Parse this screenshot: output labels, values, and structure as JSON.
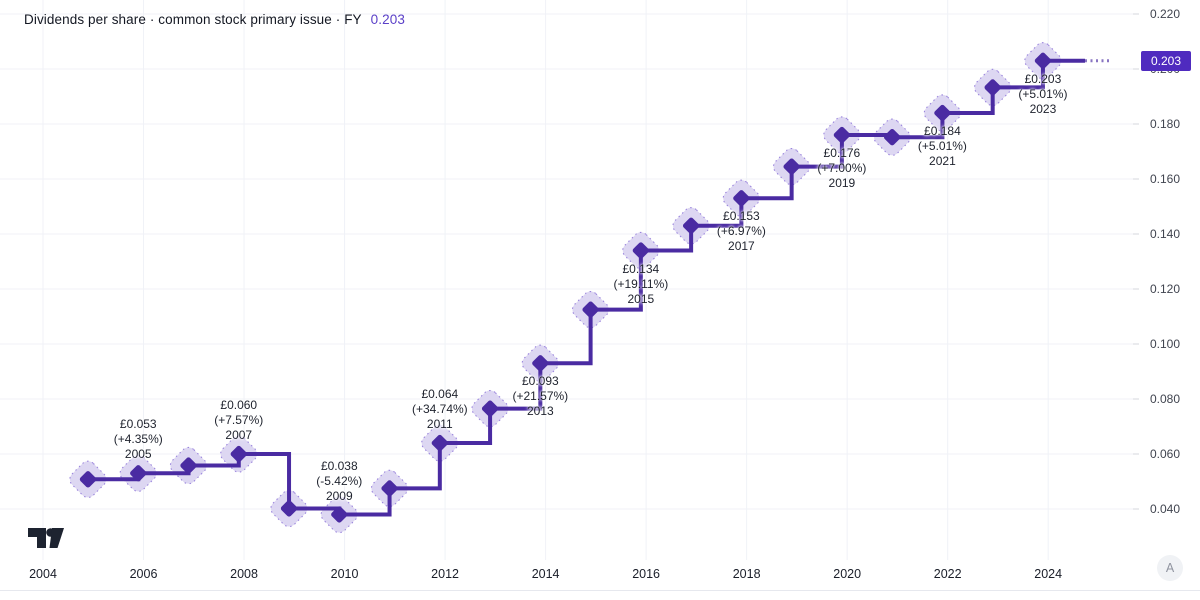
{
  "header": {
    "title": "Dividends per share · common stock primary issue · FY",
    "value": "0.203"
  },
  "chart_data": {
    "type": "line",
    "style": "step-with-diamond-markers",
    "title": "Dividends per share · common stock primary issue · FY",
    "currency": "£",
    "grid": true,
    "legend_position": "none",
    "series": [
      {
        "name": "Dividends per share",
        "points": [
          {
            "year": 2004,
            "value": 0.0508
          },
          {
            "year": 2005,
            "value": 0.053,
            "label": {
              "amount": "£0.053",
              "change": "(+4.35%)",
              "year": "2005",
              "position": "above"
            }
          },
          {
            "year": 2006,
            "value": 0.0558
          },
          {
            "year": 2007,
            "value": 0.06,
            "label": {
              "amount": "£0.060",
              "change": "(+7.57%)",
              "year": "2007",
              "position": "above"
            }
          },
          {
            "year": 2008,
            "value": 0.0402
          },
          {
            "year": 2009,
            "value": 0.038,
            "label": {
              "amount": "£0.038",
              "change": "(-5.42%)",
              "year": "2009",
              "position": "above"
            }
          },
          {
            "year": 2010,
            "value": 0.0475
          },
          {
            "year": 2011,
            "value": 0.064,
            "label": {
              "amount": "£0.064",
              "change": "(+34.74%)",
              "year": "2011",
              "position": "above"
            }
          },
          {
            "year": 2012,
            "value": 0.0765
          },
          {
            "year": 2013,
            "value": 0.093,
            "label": {
              "amount": "£0.093",
              "change": "(+21.57%)",
              "year": "2013",
              "position": "below"
            }
          },
          {
            "year": 2014,
            "value": 0.1125
          },
          {
            "year": 2015,
            "value": 0.134,
            "label": {
              "amount": "£0.134",
              "change": "(+19.11%)",
              "year": "2015",
              "position": "below"
            }
          },
          {
            "year": 2016,
            "value": 0.143
          },
          {
            "year": 2017,
            "value": 0.153,
            "label": {
              "amount": "£0.153",
              "change": "(+6.97%)",
              "year": "2017",
              "position": "below"
            }
          },
          {
            "year": 2018,
            "value": 0.1645
          },
          {
            "year": 2019,
            "value": 0.176,
            "label": {
              "amount": "£0.176",
              "change": "(+7.00%)",
              "year": "2019",
              "position": "below"
            }
          },
          {
            "year": 2020,
            "value": 0.1752
          },
          {
            "year": 2021,
            "value": 0.184,
            "label": {
              "amount": "£0.184",
              "change": "(+5.01%)",
              "year": "2021",
              "position": "below"
            }
          },
          {
            "year": 2022,
            "value": 0.1933
          },
          {
            "year": 2023,
            "value": 0.203,
            "label": {
              "amount": "£0.203",
              "change": "(+5.01%)",
              "year": "2023",
              "position": "below"
            }
          }
        ]
      }
    ],
    "y_axis": {
      "ticks": [
        "0.220",
        "0.200",
        "0.180",
        "0.160",
        "0.140",
        "0.120",
        "0.100",
        "0.080",
        "0.060",
        "0.040"
      ],
      "range": [
        0.032,
        0.225
      ],
      "last_price_label": "0.203"
    },
    "x_axis": {
      "ticks": [
        "2004",
        "2006",
        "2008",
        "2010",
        "2012",
        "2014",
        "2016",
        "2018",
        "2020",
        "2022",
        "2024"
      ]
    }
  },
  "colors": {
    "line": "#4a2ba2",
    "marker": "#4a2ba2",
    "halo_fill": "#ddd7f2",
    "halo_dots": "#9b85dd",
    "badge_bg": "#4f2bbf",
    "badge_text": "#ffffff",
    "title_value": "#5b40c8",
    "grid": "#f0f2f7",
    "axis_tick": "#d4d7dd"
  },
  "controls": {
    "adjust_label": "A"
  },
  "branding": {
    "name": "TradingView"
  }
}
